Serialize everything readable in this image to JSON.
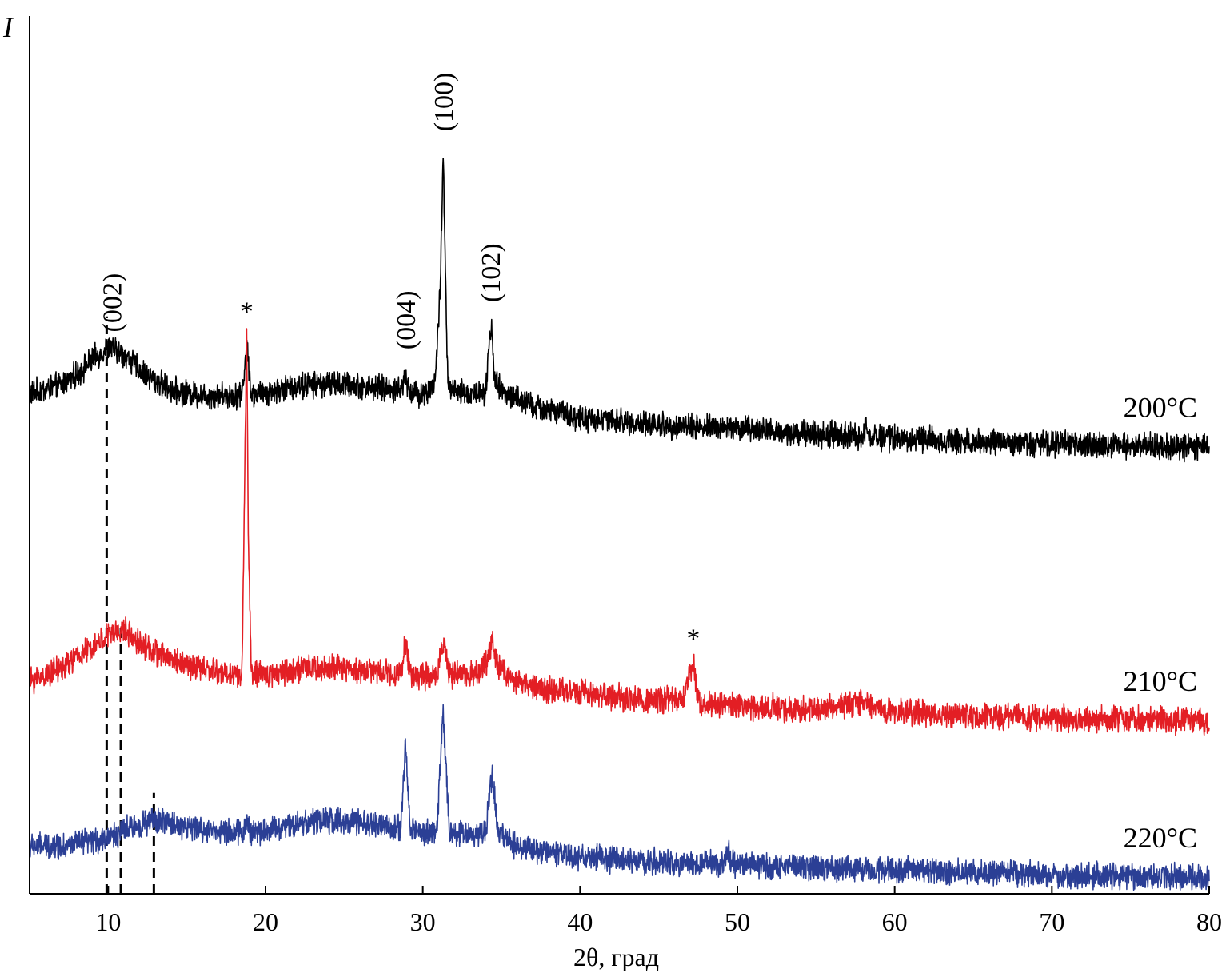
{
  "chart_data": {
    "type": "line",
    "title": "",
    "ylabel": "I",
    "xlabel": "2θ, град",
    "xlim": [
      5,
      80
    ],
    "ylim": [
      0,
      100
    ],
    "x_ticks": [
      10,
      20,
      30,
      40,
      50,
      60,
      70,
      80
    ],
    "x_tick_labels": [
      "10",
      "20",
      "30",
      "40",
      "50",
      "60",
      "70",
      "80"
    ],
    "grid": false,
    "legend": "labels at right end of each curve",
    "noise_amplitude": 1.3,
    "series": [
      {
        "name": "200°C",
        "color": "#000000",
        "x": [
          5,
          7,
          8,
          9,
          10,
          11,
          12,
          13,
          14,
          15,
          16,
          17,
          18,
          18.5,
          18.8,
          19.1,
          19.5,
          20,
          22,
          24,
          26,
          28,
          28.6,
          28.9,
          29.2,
          29.8,
          30.3,
          30.8,
          31.1,
          31.3,
          31.45,
          31.6,
          32,
          33,
          34,
          34.25,
          34.4,
          34.55,
          35,
          37,
          40,
          45,
          50,
          55,
          58,
          58.2,
          58.4,
          60,
          65,
          70,
          75,
          80
        ],
        "y": [
          62.2,
          63.3,
          64.6,
          66.5,
          68.0,
          67.2,
          65.2,
          63.8,
          62.7,
          62.3,
          62.0,
          62.0,
          62.0,
          62.0,
          68.5,
          62.0,
          62.2,
          62.3,
          63.2,
          63.5,
          63.2,
          62.7,
          62.7,
          64.5,
          62.5,
          62.2,
          62.4,
          64.0,
          75.0,
          93.0,
          76.0,
          63.2,
          62.4,
          62.2,
          62.6,
          69.0,
          71.0,
          64.0,
          62.5,
          60.6,
          59.1,
          58.2,
          57.8,
          57.1,
          56.7,
          58.8,
          56.7,
          56.5,
          56.2,
          55.8,
          55.6,
          55.4
        ]
      },
      {
        "name": "210°C",
        "color": "#e31e24",
        "x": [
          5,
          7,
          8,
          9,
          10,
          11,
          12,
          13,
          14,
          15,
          16,
          17,
          18,
          18.5,
          18.7,
          18.8,
          18.9,
          19.1,
          20,
          22,
          24,
          26,
          28,
          28.6,
          28.9,
          29.2,
          30.2,
          30.9,
          31.3,
          31.7,
          32.5,
          33.5,
          34.0,
          34.4,
          34.8,
          36,
          38,
          40,
          44,
          46.6,
          46.9,
          47.2,
          47.5,
          47.9,
          50,
          55,
          58.1,
          60,
          65,
          70,
          75,
          80
        ],
        "y": [
          25.7,
          27.3,
          28.8,
          30.0,
          31.5,
          32.2,
          30.6,
          29.3,
          28.5,
          27.7,
          27.3,
          26.8,
          26.5,
          26.5,
          55.0,
          69.8,
          45.0,
          26.5,
          26.5,
          27.2,
          27.3,
          27.2,
          26.8,
          26.5,
          30.8,
          26.5,
          26.3,
          26.5,
          31.0,
          26.3,
          26.5,
          26.8,
          27.7,
          31.0,
          27.5,
          25.5,
          24.7,
          24.2,
          23.3,
          23.3,
          26.5,
          28.0,
          23.3,
          22.8,
          22.5,
          22.1,
          23.0,
          21.8,
          21.3,
          21.0,
          20.9,
          20.6
        ]
      },
      {
        "name": "220°C",
        "color": "#2b3f95",
        "x": [
          5,
          7,
          9,
          10,
          11,
          12,
          13,
          14,
          15,
          16,
          17,
          18,
          18.6,
          18.8,
          19.0,
          20,
          22,
          24,
          26,
          28,
          28.6,
          28.9,
          29.2,
          30.2,
          30.9,
          31.3,
          31.7,
          32.5,
          33.5,
          34.0,
          34.4,
          34.8,
          36,
          38,
          40,
          45,
          49.2,
          49.4,
          49.6,
          52,
          55,
          58.1,
          60,
          65,
          70,
          75,
          80
        ],
        "y": [
          4.7,
          4.8,
          5.3,
          5.8,
          6.7,
          7.5,
          8.0,
          7.6,
          7.1,
          6.8,
          6.7,
          6.5,
          6.5,
          8.0,
          6.5,
          6.8,
          7.6,
          8.0,
          7.6,
          7.1,
          7.0,
          17.5,
          7.0,
          6.5,
          6.5,
          22.0,
          6.5,
          6.3,
          6.3,
          6.6,
          14.0,
          6.5,
          4.7,
          3.8,
          3.3,
          2.7,
          2.5,
          4.2,
          2.5,
          2.2,
          2.0,
          1.8,
          1.7,
          1.4,
          1.1,
          0.9,
          0.7
        ]
      }
    ],
    "annotations": [
      {
        "text": "(002)",
        "x": 10.2,
        "y": 70.0,
        "rotated": true,
        "series": "200°C"
      },
      {
        "text": "*",
        "x": 18.8,
        "y": 71.5,
        "rotated": false,
        "series": "200°C"
      },
      {
        "text": "(004)",
        "x": 28.9,
        "y": 67.8,
        "rotated": true,
        "series": "200°C"
      },
      {
        "text": "(100)",
        "x": 31.3,
        "y": 95.5,
        "rotated": true,
        "series": "200°C"
      },
      {
        "text": "(102)",
        "x": 34.3,
        "y": 73.8,
        "rotated": true,
        "series": "200°C"
      },
      {
        "text": "*",
        "x": 47.2,
        "y": 30.0,
        "rotated": false,
        "series": "210°C"
      }
    ],
    "reference_lines": [
      {
        "x": 9.9,
        "y_from": 0,
        "y_to": 72.0,
        "style": "dashed"
      },
      {
        "x": 10.8,
        "y_from": 0,
        "y_to": 33.0,
        "style": "dashed"
      },
      {
        "x": 12.9,
        "y_from": 0,
        "y_to": 11.5,
        "style": "dashed"
      }
    ]
  }
}
